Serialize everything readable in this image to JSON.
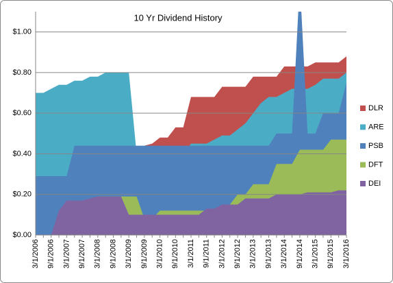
{
  "chart_data": {
    "type": "area",
    "title": "10 Yr Dividend History",
    "categories": [
      "3/1/2006",
      null,
      "9/1/2006",
      null,
      "3/1/2007",
      null,
      "9/1/2007",
      null,
      "3/1/2008",
      null,
      "9/1/2008",
      null,
      "3/1/2009",
      null,
      "9/1/2009",
      null,
      "3/1/2010",
      null,
      "9/1/2010",
      null,
      "3/1/2011",
      null,
      "9/1/2011",
      null,
      "3/1/2012",
      null,
      "9/1/2012",
      null,
      "3/1/2013",
      null,
      "9/1/2013",
      null,
      "3/1/2014",
      null,
      "9/1/2014",
      null,
      "3/1/2015",
      null,
      "9/1/2015",
      null,
      "3/1/2016"
    ],
    "series": [
      {
        "name": "DLR",
        "color": "#c0504d",
        "values": [
          0.27,
          0.27,
          0.27,
          0.27,
          0.31,
          0.31,
          0.31,
          0.31,
          0.31,
          0.31,
          0.31,
          0.31,
          0.33,
          0.33,
          0.44,
          0.45,
          0.48,
          0.48,
          0.53,
          0.53,
          0.68,
          0.68,
          0.68,
          0.68,
          0.73,
          0.73,
          0.73,
          0.73,
          0.78,
          0.78,
          0.78,
          0.78,
          0.83,
          0.83,
          0.83,
          0.83,
          0.85,
          0.85,
          0.85,
          0.85,
          0.88
        ]
      },
      {
        "name": "ARE",
        "color": "#4bacc6",
        "values": [
          0.7,
          0.7,
          0.72,
          0.74,
          0.74,
          0.76,
          0.76,
          0.78,
          0.78,
          0.8,
          0.8,
          0.8,
          0.8,
          0.4,
          0.4,
          0.4,
          0.4,
          0.4,
          0.4,
          0.4,
          0.45,
          0.45,
          0.45,
          0.47,
          0.49,
          0.49,
          0.52,
          0.55,
          0.6,
          0.65,
          0.68,
          0.68,
          0.7,
          0.72,
          0.72,
          0.72,
          0.74,
          0.77,
          0.77,
          0.77,
          0.8
        ]
      },
      {
        "name": "PSB",
        "color": "#4f81bd",
        "values": [
          0.29,
          0.29,
          0.29,
          0.29,
          0.29,
          0.44,
          0.44,
          0.44,
          0.44,
          0.44,
          0.44,
          0.44,
          0.44,
          0.44,
          0.44,
          0.44,
          0.44,
          0.44,
          0.44,
          0.44,
          0.44,
          0.44,
          0.44,
          0.44,
          0.44,
          0.44,
          0.44,
          0.44,
          0.44,
          0.44,
          0.44,
          0.5,
          0.5,
          0.5,
          1.25,
          0.5,
          0.5,
          0.6,
          0.6,
          0.6,
          0.75
        ]
      },
      {
        "name": "DFT",
        "color": "#9bbb59",
        "values": [
          0,
          0,
          0,
          0,
          0,
          0,
          0,
          0.12,
          0.19,
          0.19,
          0.19,
          0.19,
          0.19,
          0.19,
          0.08,
          0.08,
          0.12,
          0.12,
          0.12,
          0.12,
          0.12,
          0.12,
          0.12,
          0.12,
          0.12,
          0.15,
          0.2,
          0.2,
          0.25,
          0.25,
          0.25,
          0.35,
          0.35,
          0.35,
          0.42,
          0.42,
          0.42,
          0.42,
          0.47,
          0.47,
          0.47
        ]
      },
      {
        "name": "DEI",
        "color": "#8064a2",
        "values": [
          0,
          0,
          0,
          0.12,
          0.17,
          0.17,
          0.17,
          0.18,
          0.19,
          0.19,
          0.19,
          0.19,
          0.1,
          0.1,
          0.1,
          0.1,
          0.1,
          0.1,
          0.1,
          0.1,
          0.1,
          0.1,
          0.13,
          0.13,
          0.15,
          0.15,
          0.15,
          0.18,
          0.18,
          0.18,
          0.18,
          0.2,
          0.2,
          0.2,
          0.2,
          0.21,
          0.21,
          0.21,
          0.21,
          0.22,
          0.22
        ]
      }
    ],
    "ylim": [
      0,
      1.1
    ],
    "yticks": [
      {
        "value": 0,
        "label": "$0.00"
      },
      {
        "value": 0.2,
        "label": "$0.20"
      },
      {
        "value": 0.4,
        "label": "$0.40"
      },
      {
        "value": 0.6,
        "label": "$0.60"
      },
      {
        "value": 0.8,
        "label": "$0.80"
      },
      {
        "value": 1,
        "label": "$1.00"
      }
    ],
    "grid": true,
    "legend": "right"
  }
}
